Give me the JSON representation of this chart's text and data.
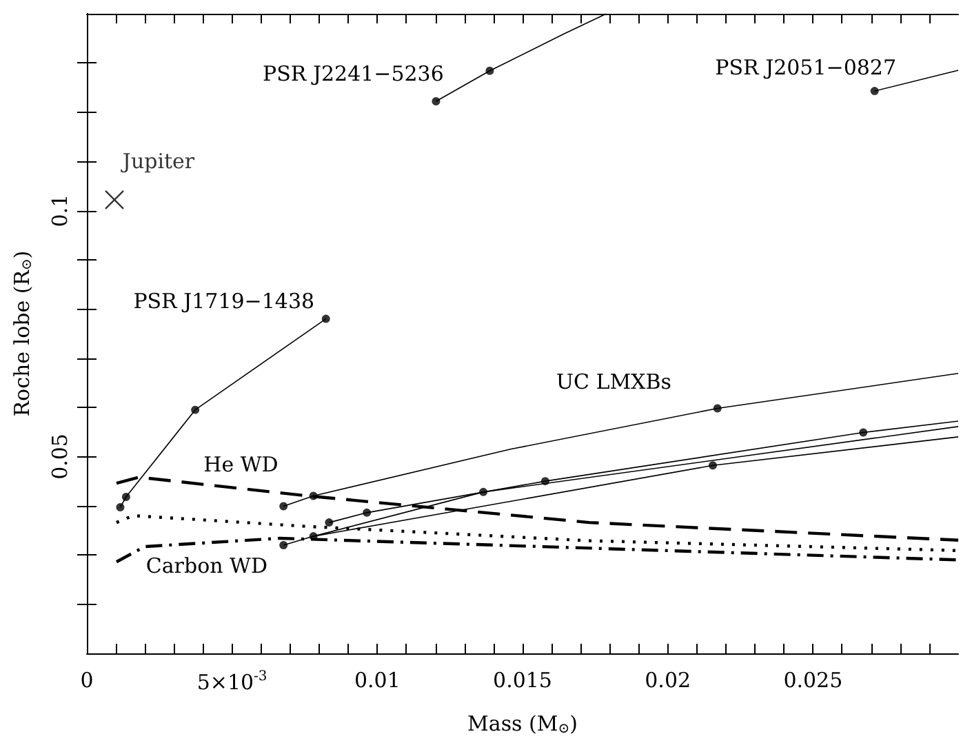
{
  "chart_data": {
    "type": "line",
    "xlabel": "Mass (M$_{⊙}$)",
    "ylabel": "Roche lobe (R$_{⊙}$)",
    "xlim": [
      0,
      0.03
    ],
    "ylim": [
      0.01,
      0.14
    ],
    "xticks": [
      0,
      {
        "value": 0.001,
        "label": null
      },
      {
        "value": 0.002,
        "label": null
      },
      {
        "value": 0.003,
        "label": null
      },
      {
        "value": 0.004,
        "label": null
      },
      {
        "value": 0.005,
        "label": "5×10$^{-3}$"
      },
      {
        "value": 0.006,
        "label": null
      },
      {
        "value": 0.007,
        "label": null
      },
      {
        "value": 0.008,
        "label": null
      },
      {
        "value": 0.009,
        "label": null
      },
      0.01,
      {
        "value": 0.011,
        "label": null
      },
      {
        "value": 0.012,
        "label": null
      },
      {
        "value": 0.013,
        "label": null
      },
      {
        "value": 0.014,
        "label": null
      },
      0.015,
      {
        "value": 0.016,
        "label": null
      },
      {
        "value": 0.017,
        "label": null
      },
      {
        "value": 0.018,
        "label": null
      },
      {
        "value": 0.019,
        "label": null
      },
      0.02,
      {
        "value": 0.021,
        "label": null
      },
      {
        "value": 0.022,
        "label": null
      },
      {
        "value": 0.023,
        "label": null
      },
      {
        "value": 0.024,
        "label": null
      },
      0.025,
      {
        "value": 0.026,
        "label": null
      },
      {
        "value": 0.027,
        "label": null
      },
      {
        "value": 0.028,
        "label": null
      },
      {
        "value": 0.029,
        "label": null
      }
    ],
    "yticks": [
      {
        "value": 0.02,
        "label": null
      },
      {
        "value": 0.03,
        "label": null
      },
      {
        "value": 0.04,
        "label": null
      },
      0.05,
      {
        "value": 0.06,
        "label": null
      },
      {
        "value": 0.07,
        "label": null
      },
      {
        "value": 0.08,
        "label": null
      },
      {
        "value": 0.09,
        "label": null
      },
      0.1,
      {
        "value": 0.11,
        "label": null
      },
      {
        "value": 0.12,
        "label": null
      },
      {
        "value": 0.13,
        "label": null
      }
    ],
    "grid": false,
    "legend": false,
    "series": [
      {
        "type": "line",
        "name": "PSR J1719−1438",
        "color": "#000000",
        "line_style": "solid",
        "x": [
          0.00115,
          0.00135,
          0.00373,
          0.00823
        ],
        "values": [
          0.0397,
          0.0418,
          0.0595,
          0.078
        ]
      },
      {
        "type": "line",
        "name": "PSR J2241−5236",
        "color": "#000000",
        "line_style": "solid",
        "x": [
          0.01202,
          0.01387,
          0.01642,
          0.01788
        ],
        "values": [
          0.1222,
          0.1284,
          0.1359,
          0.14
        ]
      },
      {
        "type": "line",
        "name": "PSR J2051−0827",
        "color": "#000000",
        "line_style": "solid",
        "x": [
          0.02712,
          0.03
        ],
        "values": [
          0.1243,
          0.1285
        ]
      },
      {
        "type": "line",
        "name": "UC LMXBs",
        "color": "#000000",
        "line_style": "solid",
        "x": [
          0.00677,
          0.0078,
          0.01458,
          0.02171,
          0.03
        ],
        "values": [
          0.0399,
          0.042,
          0.0515,
          0.0598,
          0.0669
        ]
      },
      {
        "type": "line",
        "color": "#000000",
        "line_style": "solid",
        "x": [
          0.00834,
          0.00964,
          0.01578,
          0.02673,
          0.03
        ],
        "values": [
          0.0366,
          0.0386,
          0.045,
          0.0549,
          0.0572
        ]
      },
      {
        "type": "line",
        "color": "#000000",
        "line_style": "solid",
        "x": [
          0.0078,
          0.01365,
          0.03
        ],
        "values": [
          0.0338,
          0.0428,
          0.0561
        ]
      },
      {
        "type": "line",
        "color": "#000000",
        "line_style": "solid",
        "x": [
          0.00677,
          0.0078,
          0.02155,
          0.03
        ],
        "values": [
          0.032,
          0.0338,
          0.0482,
          0.054
        ]
      },
      {
        "type": "line",
        "name": "He WD",
        "color": "#000000",
        "line_style": "dashed",
        "x": [
          0.00102,
          0.00179,
          0.00761,
          0.01729,
          0.03
        ],
        "values": [
          0.0446,
          0.0458,
          0.042,
          0.0366,
          0.033
        ]
      },
      {
        "type": "line",
        "color": "#000000",
        "line_style": "dotted",
        "x": [
          0.00102,
          0.0016,
          0.00761,
          0.01729,
          0.03
        ],
        "values": [
          0.0366,
          0.038,
          0.0358,
          0.0329,
          0.0309
        ]
      },
      {
        "type": "line",
        "name": "Carbon WD",
        "color": "#000000",
        "line_style": "dashdot",
        "x": [
          0.00102,
          0.00199,
          0.00664,
          0.03
        ],
        "values": [
          0.0286,
          0.0317,
          0.0334,
          0.029
        ]
      },
      {
        "type": "scatter",
        "color": "#000000",
        "marker": "circle",
        "x": [
          0.00115,
          0.00135,
          0.00373,
          0.00823,
          0.01202,
          0.01387,
          0.02712,
          0.00677,
          0.0078,
          0.02171,
          0.00677,
          0.0078,
          0.00834,
          0.00964,
          0.01365,
          0.01578,
          0.02155,
          0.02673
        ],
        "values": [
          0.0397,
          0.0418,
          0.0595,
          0.078,
          0.1222,
          0.1284,
          0.1243,
          0.0399,
          0.042,
          0.0598,
          0.032,
          0.0338,
          0.0366,
          0.0386,
          0.0428,
          0.045,
          0.0482,
          0.0549
        ]
      },
      {
        "type": "scatter",
        "name": "Jupiter",
        "color": "#000000",
        "marker": "cross",
        "x": [
          0.00095
        ],
        "values": [
          0.1022
        ]
      }
    ]
  }
}
